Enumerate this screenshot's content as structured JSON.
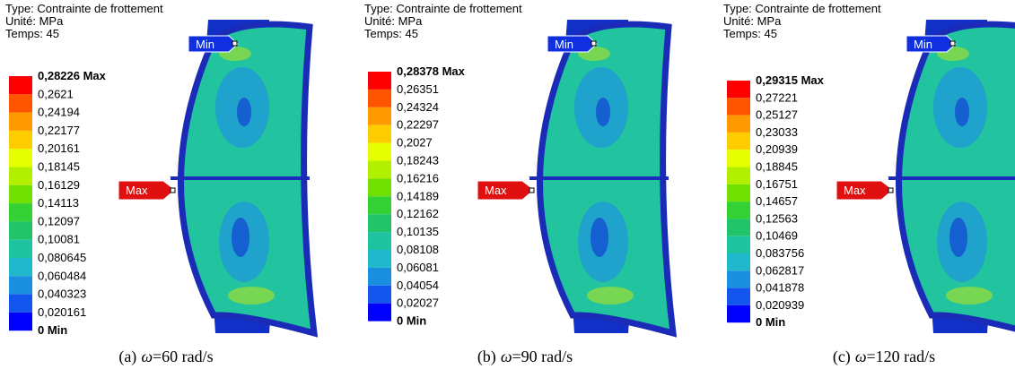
{
  "panels": [
    {
      "header": [
        "Type: Contrainte de frottement",
        "Unité: MPa",
        "Temps: 45"
      ],
      "legend": [
        "0,28226 Max",
        "0,2621",
        "0,24194",
        "0,22177",
        "0,20161",
        "0,18145",
        "0,16129",
        "0,14113",
        "0,12097",
        "0,10081",
        "0,080645",
        "0,060484",
        "0,040323",
        "0,020161",
        "0 Min"
      ],
      "min_label": "Min",
      "max_label": "Max",
      "caption": {
        "label": "(a)",
        "symbol": "ω",
        "value": "=60 rad/s"
      }
    },
    {
      "header": [
        "Type: Contrainte de frottement",
        "Unité: MPa",
        "Temps: 45"
      ],
      "legend": [
        "0,28378 Max",
        "0,26351",
        "0,24324",
        "0,22297",
        "0,2027",
        "0,18243",
        "0,16216",
        "0,14189",
        "0,12162",
        "0,10135",
        "0,08108",
        "0,06081",
        "0,04054",
        "0,02027",
        "0 Min"
      ],
      "min_label": "Min",
      "max_label": "Max",
      "caption": {
        "label": "(b)",
        "symbol": "ω",
        "value": "=90 rad/s"
      }
    },
    {
      "header": [
        "Type: Contrainte de frottement",
        "Unité: MPa",
        "Temps: 45"
      ],
      "legend": [
        "0,29315 Max",
        "0,27221",
        "0,25127",
        "0,23033",
        "0,20939",
        "0,18845",
        "0,16751",
        "0,14657",
        "0,12563",
        "0,10469",
        "0,083756",
        "0,062817",
        "0,041878",
        "0,020939",
        "0 Min"
      ],
      "min_label": "Min",
      "max_label": "Max",
      "caption": {
        "label": "(c)",
        "symbol": "ω",
        "value": "=120 rad/s"
      }
    }
  ]
}
